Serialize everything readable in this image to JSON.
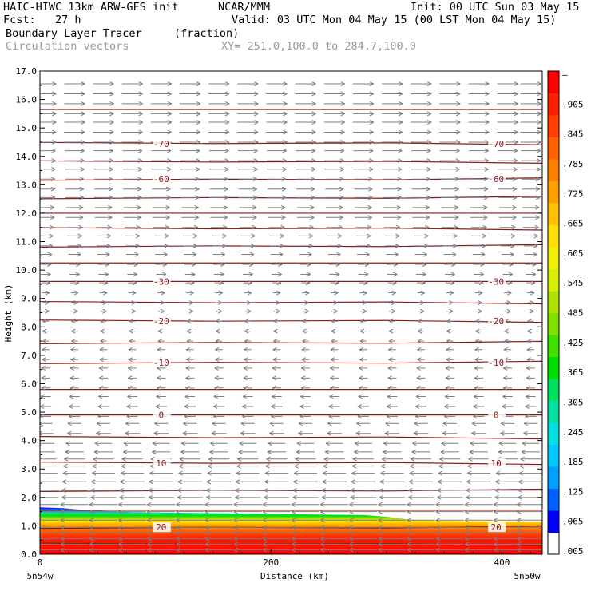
{
  "header": {
    "model": "HAIC-HIWC 13km ARW-GFS init",
    "org": "NCAR/MMM",
    "init": "Init: 00 UTC Sun 03 May 15",
    "fcst": "Fcst:   27 h",
    "valid": "Valid: 03 UTC Mon 04 May 15 (00 LST Mon 04 May 15)",
    "field": "Boundary Layer Tracer",
    "units": "(fraction)",
    "vectors": "Circulation vectors",
    "xy": "XY= 251.0,100.0 to 284.7,100.0"
  },
  "colors": {
    "contour": "#8b1a1a",
    "vector": "#7f7f7f",
    "colorbar": [
      "#ffffff",
      "#0000ff",
      "#0060ff",
      "#00a0ff",
      "#00c8ff",
      "#00e0e0",
      "#00e0a0",
      "#00e060",
      "#00e000",
      "#40e000",
      "#80e000",
      "#b0e000",
      "#d8f000",
      "#f0f000",
      "#ffe000",
      "#ffc000",
      "#ffa000",
      "#ff8000",
      "#ff6000",
      "#ff4000",
      "#ff2000",
      "#ff0000"
    ]
  },
  "chart_data": {
    "type": "heatmap",
    "title": "Boundary Layer Tracer",
    "xlabel": "Distance (km)",
    "ylabel": "Height (km)",
    "xlim": [
      0,
      435
    ],
    "ylim": [
      0,
      17
    ],
    "x_ticks": [
      "0",
      "200",
      "400"
    ],
    "x_end_labels": [
      "5n54w",
      "5n50w"
    ],
    "y_ticks": [
      "0.0",
      "1.0",
      "2.0",
      "3.0",
      "4.0",
      "5.0",
      "6.0",
      "7.0",
      "8.0",
      "9.0",
      "10.0",
      "11.0",
      "12.0",
      "13.0",
      "14.0",
      "15.0",
      "16.0",
      "17.0"
    ],
    "colorbar_labels": [
      ".005",
      ".065",
      ".125",
      ".185",
      ".245",
      ".305",
      ".365",
      ".425",
      ".485",
      ".545",
      ".605",
      ".665",
      ".725",
      ".785",
      ".845",
      ".905",
      "–"
    ],
    "tracer_top_km": [
      1.65,
      1.62,
      1.55,
      1.48,
      1.46,
      1.44,
      1.42,
      1.4,
      1.38,
      1.32,
      1.22,
      1.18,
      1.15,
      1.14
    ],
    "tracer_top_x_km": [
      0,
      20,
      40,
      80,
      120,
      160,
      200,
      240,
      280,
      300,
      320,
      350,
      400,
      435
    ],
    "temperature_contours": [
      {
        "label": "20",
        "height_km": 0.95
      },
      {
        "label": "10",
        "height_km": 3.2
      },
      {
        "label": "0",
        "height_km": 4.9
      },
      {
        "label": "-10",
        "height_km": 6.75
      },
      {
        "label": "-20",
        "height_km": 8.2
      },
      {
        "label": "-30",
        "height_km": 9.6
      },
      {
        "label": "-60",
        "height_km": 13.2
      },
      {
        "label": "-70",
        "height_km": 14.45
      }
    ],
    "extra_isotherm_heights_km": [
      0.35,
      1.55,
      2.25,
      4.1,
      5.8,
      7.45,
      8.85,
      10.25,
      10.85,
      11.45,
      12.0,
      12.55,
      13.8,
      15.65
    ],
    "vector_rows_km": [
      0.15,
      0.35,
      0.55,
      0.75,
      0.95,
      1.2,
      1.5,
      1.75,
      2.0,
      2.25,
      2.55,
      2.85,
      3.1,
      3.35,
      3.6,
      3.9,
      4.25,
      4.6,
      4.85,
      5.2,
      5.55,
      5.85,
      6.2,
      6.55,
      6.85,
      7.2,
      7.5,
      7.85,
      8.2,
      8.55,
      8.85,
      9.2,
      9.55,
      9.85,
      10.2,
      10.55,
      10.85,
      11.2,
      11.5,
      11.85,
      12.2,
      12.55,
      12.85,
      13.2,
      13.55,
      13.85,
      14.2,
      14.5,
      14.85,
      15.2,
      15.5,
      15.85,
      16.2,
      16.55
    ],
    "vector_u": [
      -1.0,
      -1.0,
      -1.0,
      -1.0,
      -1.0,
      -1.0,
      -1.0,
      -1.0,
      -0.9,
      -0.9,
      -0.85,
      -0.8,
      -0.75,
      -0.7,
      -0.6,
      -0.55,
      -0.45,
      -0.4,
      -0.3,
      -0.3,
      -0.25,
      -0.2,
      -0.2,
      -0.2,
      -0.15,
      -0.15,
      -0.1,
      -0.1,
      -0.1,
      0.1,
      0.1,
      0.15,
      0.2,
      0.25,
      0.3,
      0.35,
      0.4,
      0.45,
      0.5,
      0.55,
      0.55,
      0.6,
      0.6,
      0.6,
      0.65,
      0.65,
      0.65,
      0.7,
      0.7,
      0.7,
      0.7,
      0.7,
      0.7,
      0.7
    ],
    "vector_columns_km": [
      5,
      30,
      55,
      80,
      105,
      130,
      155,
      180,
      205,
      230,
      255,
      280,
      305,
      330,
      355,
      380,
      405,
      425
    ]
  }
}
